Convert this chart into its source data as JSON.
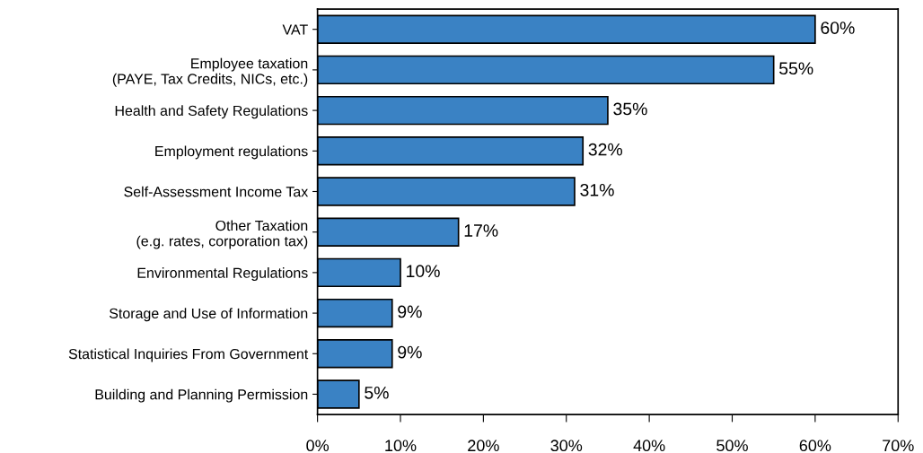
{
  "chart_data": {
    "type": "bar",
    "orientation": "horizontal",
    "categories": [
      "VAT",
      "Employee taxation\n(PAYE, Tax Credits, NICs, etc.)",
      "Health and Safety Regulations",
      "Employment regulations",
      "Self-Assessment Income Tax",
      "Other Taxation\n(e.g. rates, corporation tax)",
      "Environmental Regulations",
      "Storage and Use of Information",
      "Statistical Inquiries From Government",
      "Building and Planning Permission"
    ],
    "values": [
      60,
      55,
      35,
      32,
      31,
      17,
      10,
      9,
      9,
      5
    ],
    "value_labels": [
      "60%",
      "55%",
      "35%",
      "32%",
      "31%",
      "17%",
      "10%",
      "9%",
      "9%",
      "5%"
    ],
    "color": "#3a82c4",
    "xlim": [
      0,
      70
    ],
    "xticks": [
      {
        "value": 0,
        "label": "0%"
      },
      {
        "value": 10,
        "label": "10%"
      },
      {
        "value": 20,
        "label": "20%"
      },
      {
        "value": 30,
        "label": "30%"
      },
      {
        "value": 40,
        "label": "40%"
      },
      {
        "value": 50,
        "label": "50%"
      },
      {
        "value": 60,
        "label": "60%"
      },
      {
        "value": 70,
        "label": "70%"
      }
    ],
    "grid": false
  }
}
